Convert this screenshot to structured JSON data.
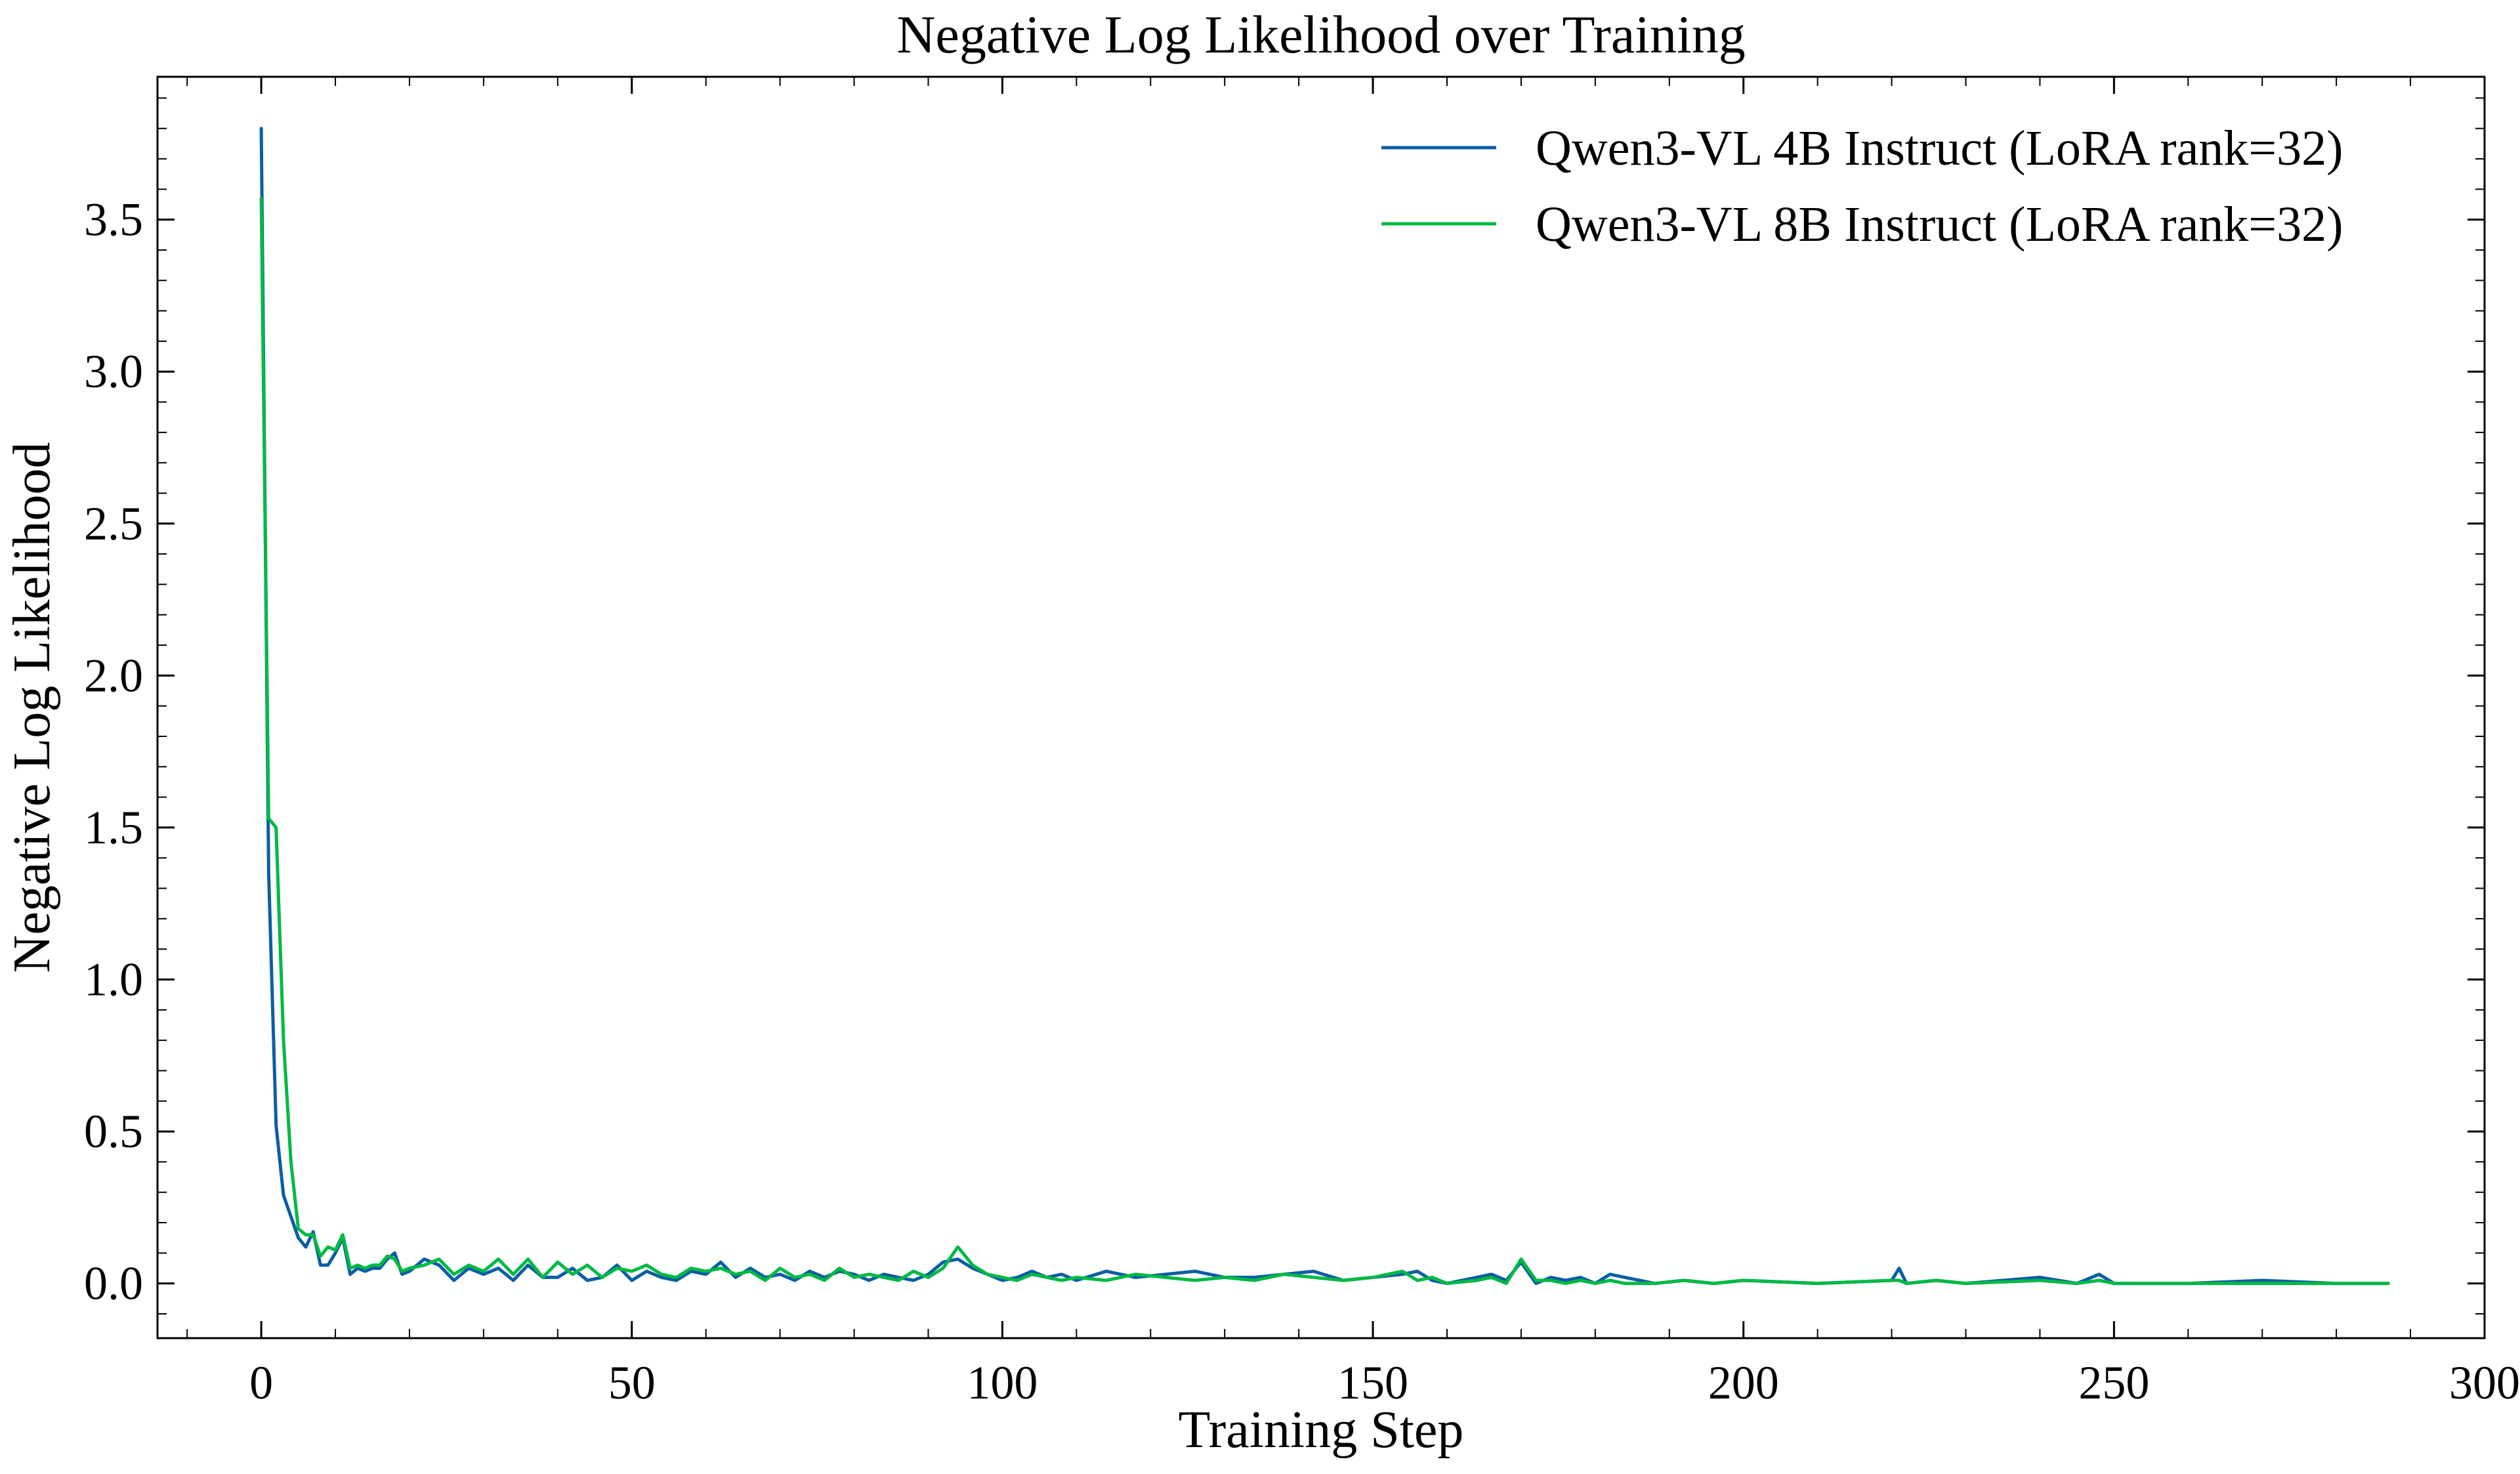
{
  "chart_data": {
    "type": "line",
    "title": "Negative Log Likelihood over Training",
    "xlabel": "Training Step",
    "ylabel": "Negative Log Likelihood",
    "xlim": [
      -14,
      300
    ],
    "ylim": [
      -0.18,
      3.97
    ],
    "x_ticks": [
      0,
      50,
      100,
      150,
      200,
      250,
      300
    ],
    "y_ticks": [
      0.0,
      0.5,
      1.0,
      1.5,
      2.0,
      2.5,
      3.0,
      3.5
    ],
    "x_tick_labels": [
      "0",
      "50",
      "100",
      "150",
      "200",
      "250",
      "300"
    ],
    "y_tick_labels": [
      "0.0",
      "0.5",
      "1.0",
      "1.5",
      "2.0",
      "2.5",
      "3.0",
      "3.5"
    ],
    "grid": false,
    "legend_position": "top-right",
    "series": [
      {
        "name": "Qwen3-VL 4B Instruct (LoRA rank=32)",
        "color": "#0c5da5",
        "x": [
          0,
          1,
          2,
          3,
          4,
          5,
          6,
          7,
          8,
          9,
          10,
          11,
          12,
          13,
          14,
          15,
          16,
          17,
          18,
          19,
          20,
          22,
          24,
          26,
          28,
          30,
          32,
          34,
          36,
          38,
          40,
          42,
          44,
          46,
          48,
          50,
          52,
          54,
          56,
          58,
          60,
          62,
          64,
          66,
          68,
          70,
          72,
          74,
          76,
          78,
          80,
          82,
          84,
          86,
          88,
          90,
          92,
          94,
          96,
          98,
          100,
          102,
          104,
          106,
          108,
          110,
          114,
          118,
          122,
          126,
          130,
          134,
          138,
          142,
          146,
          150,
          154,
          156,
          158,
          160,
          164,
          166,
          168,
          170,
          172,
          174,
          176,
          178,
          180,
          182,
          184,
          188,
          192,
          196,
          200,
          210,
          220,
          221,
          222,
          226,
          230,
          240,
          245,
          248,
          250,
          260,
          270,
          280,
          287
        ],
        "y": [
          3.8,
          1.35,
          0.52,
          0.29,
          0.22,
          0.15,
          0.12,
          0.17,
          0.06,
          0.06,
          0.1,
          0.15,
          0.03,
          0.05,
          0.04,
          0.05,
          0.05,
          0.08,
          0.1,
          0.03,
          0.04,
          0.08,
          0.06,
          0.01,
          0.05,
          0.03,
          0.05,
          0.01,
          0.06,
          0.02,
          0.02,
          0.05,
          0.01,
          0.02,
          0.06,
          0.01,
          0.04,
          0.02,
          0.01,
          0.04,
          0.03,
          0.07,
          0.02,
          0.05,
          0.02,
          0.03,
          0.01,
          0.04,
          0.02,
          0.04,
          0.03,
          0.01,
          0.03,
          0.02,
          0.01,
          0.03,
          0.07,
          0.08,
          0.05,
          0.03,
          0.01,
          0.02,
          0.04,
          0.02,
          0.03,
          0.01,
          0.04,
          0.02,
          0.03,
          0.04,
          0.02,
          0.02,
          0.03,
          0.04,
          0.01,
          0.02,
          0.03,
          0.04,
          0.01,
          0.0,
          0.02,
          0.03,
          0.01,
          0.07,
          0.0,
          0.02,
          0.01,
          0.02,
          0.0,
          0.03,
          0.02,
          0.0,
          0.01,
          0.0,
          0.01,
          0.0,
          0.01,
          0.05,
          0.0,
          0.01,
          0.0,
          0.02,
          0.0,
          0.03,
          0.0,
          0.0,
          0.01,
          0.0,
          0.0
        ]
      },
      {
        "name": "Qwen3-VL 8B Instruct (LoRA rank=32)",
        "color": "#00b945",
        "x": [
          0,
          1,
          2,
          3,
          4,
          5,
          6,
          7,
          8,
          9,
          10,
          11,
          12,
          13,
          14,
          15,
          16,
          17,
          18,
          19,
          20,
          22,
          24,
          26,
          28,
          30,
          32,
          34,
          36,
          38,
          40,
          42,
          44,
          46,
          48,
          50,
          52,
          54,
          56,
          58,
          60,
          62,
          64,
          66,
          68,
          70,
          72,
          74,
          76,
          78,
          80,
          82,
          84,
          86,
          88,
          90,
          92,
          94,
          96,
          98,
          100,
          102,
          104,
          106,
          108,
          110,
          114,
          118,
          122,
          126,
          130,
          134,
          138,
          142,
          146,
          150,
          154,
          156,
          158,
          160,
          164,
          166,
          168,
          170,
          172,
          174,
          176,
          178,
          180,
          182,
          184,
          188,
          192,
          196,
          200,
          210,
          220,
          221,
          222,
          226,
          230,
          240,
          245,
          248,
          250,
          260,
          270,
          280,
          287
        ],
        "y": [
          3.57,
          1.53,
          1.5,
          0.8,
          0.4,
          0.18,
          0.16,
          0.16,
          0.09,
          0.12,
          0.11,
          0.16,
          0.05,
          0.06,
          0.05,
          0.06,
          0.06,
          0.09,
          0.08,
          0.04,
          0.05,
          0.06,
          0.08,
          0.03,
          0.06,
          0.04,
          0.08,
          0.03,
          0.08,
          0.02,
          0.07,
          0.03,
          0.06,
          0.02,
          0.05,
          0.04,
          0.06,
          0.03,
          0.02,
          0.05,
          0.04,
          0.05,
          0.03,
          0.04,
          0.01,
          0.05,
          0.02,
          0.03,
          0.01,
          0.05,
          0.02,
          0.03,
          0.02,
          0.01,
          0.04,
          0.02,
          0.05,
          0.12,
          0.06,
          0.03,
          0.02,
          0.01,
          0.03,
          0.02,
          0.01,
          0.02,
          0.01,
          0.03,
          0.02,
          0.01,
          0.02,
          0.01,
          0.03,
          0.02,
          0.01,
          0.02,
          0.04,
          0.01,
          0.02,
          0.0,
          0.01,
          0.02,
          0.0,
          0.08,
          0.01,
          0.01,
          0.0,
          0.01,
          0.0,
          0.01,
          0.0,
          0.0,
          0.01,
          0.0,
          0.01,
          0.0,
          0.01,
          0.01,
          0.0,
          0.01,
          0.0,
          0.01,
          0.0,
          0.01,
          0.0,
          0.0,
          0.0,
          0.0,
          0.0
        ]
      }
    ]
  }
}
